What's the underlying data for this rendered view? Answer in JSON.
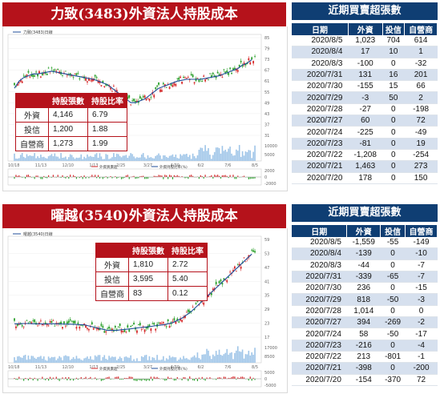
{
  "colors": {
    "title_red": "#b5121b",
    "table_navy": "#0f3e73",
    "row_alt": "#d6e0ee",
    "up": "#d62728",
    "down": "#2ca02c",
    "ma": "#1f4e9a",
    "volume": "#9fc5e8"
  },
  "panel1": {
    "title": "力致(3483)外資法人持股成本",
    "chart_data": {
      "type": "candlestick",
      "legend_label": "力致(3483)日線",
      "x_ticks": [
        "10/18",
        "11/13",
        "12/10",
        "1/13",
        "2/25",
        "3/27",
        "4/30",
        "6/2",
        "7/6",
        "8/5"
      ],
      "y_ticks": [
        "85",
        "79",
        "73",
        "67",
        "61",
        "55",
        "49",
        "43",
        "37",
        "31"
      ],
      "vol_ticks": [
        "10000",
        "5000"
      ],
      "osc_ticks": [
        "2000",
        "0",
        "-2000"
      ],
      "osc_legend": [
        "外資買賣超",
        "外資持股比率(%)"
      ],
      "series_ma": [
        58,
        62,
        64,
        65,
        66,
        66,
        66.5,
        67,
        67.5,
        67,
        66.5,
        66,
        65.5,
        65,
        64.5,
        64,
        63.5,
        63,
        62,
        61,
        60,
        58,
        56,
        54,
        52,
        50,
        50,
        51,
        52,
        54,
        56,
        58,
        59,
        60,
        61,
        62,
        62.5,
        63,
        63,
        63,
        63,
        63.5,
        64,
        64.5,
        65,
        66,
        67,
        68,
        69,
        71,
        72,
        74
      ],
      "ylim": [
        30,
        88
      ]
    },
    "holdings": {
      "headers": [
        "",
        "持股張數",
        "持股比率"
      ],
      "rows": [
        {
          "label": "外資",
          "shares": "4,146",
          "ratio": "6.79"
        },
        {
          "label": "投信",
          "shares": "1,200",
          "ratio": "1.88"
        },
        {
          "label": "自營商",
          "shares": "1,273",
          "ratio": "1.99"
        }
      ]
    },
    "trades": {
      "title": "近期買賣超張數",
      "headers": [
        "日期",
        "外資",
        "投信",
        "自營商"
      ],
      "rows": [
        [
          "2020/8/5",
          "1,023",
          "704",
          "614"
        ],
        [
          "2020/8/4",
          "17",
          "10",
          "1"
        ],
        [
          "2020/8/3",
          "-100",
          "0",
          "-32"
        ],
        [
          "2020/7/31",
          "131",
          "16",
          "201"
        ],
        [
          "2020/7/30",
          "-155",
          "15",
          "66"
        ],
        [
          "2020/7/29",
          "-3",
          "50",
          "2"
        ],
        [
          "2020/7/28",
          "-27",
          "0",
          "-198"
        ],
        [
          "2020/7/27",
          "60",
          "0",
          "72"
        ],
        [
          "2020/7/24",
          "-225",
          "0",
          "-49"
        ],
        [
          "2020/7/23",
          "-81",
          "0",
          "19"
        ],
        [
          "2020/7/22",
          "-1,208",
          "0",
          "-254"
        ],
        [
          "2020/7/21",
          "1,463",
          "0",
          "273"
        ],
        [
          "2020/7/20",
          "178",
          "0",
          "150"
        ]
      ]
    }
  },
  "panel2": {
    "title": "曜越(3540)外資法人持股成本",
    "chart_data": {
      "type": "candlestick",
      "legend_label": "曜越(3540)日線",
      "x_ticks": [
        "10/18",
        "11/13",
        "12/10",
        "1/13",
        "2/25",
        "3/27",
        "4/30",
        "6/2",
        "7/6",
        "8/5"
      ],
      "y_ticks": [
        "59",
        "53",
        "47",
        "41",
        "35",
        "29",
        "23",
        "17"
      ],
      "vol_ticks": [
        "17000",
        "8500"
      ],
      "osc_ticks": [
        "5000",
        "0",
        "-5000"
      ],
      "osc_legend": [
        "外資買賣超",
        "外資持股比率(%)"
      ],
      "series_ma": [
        22.5,
        22.5,
        22.6,
        22.6,
        22.5,
        22.5,
        22.4,
        22.4,
        22.5,
        22.5,
        22.4,
        22.3,
        22.3,
        22.2,
        22.1,
        22,
        21.5,
        21,
        20.5,
        20,
        19.5,
        19.5,
        19.5,
        19.8,
        20,
        20.2,
        20.5,
        20.8,
        21,
        21.2,
        21.5,
        21.8,
        22,
        22.5,
        23,
        24,
        25,
        26.5,
        28,
        30,
        32,
        34,
        36,
        38,
        40,
        42,
        44,
        46,
        48,
        50,
        52,
        54
      ],
      "ylim": [
        15,
        62
      ]
    },
    "holdings": {
      "headers": [
        "",
        "持股張數",
        "持股比率"
      ],
      "rows": [
        {
          "label": "外資",
          "shares": "1,810",
          "ratio": "2.72"
        },
        {
          "label": "投信",
          "shares": "3,595",
          "ratio": "5.40"
        },
        {
          "label": "自營商",
          "shares": "83",
          "ratio": "0.12"
        }
      ]
    },
    "trades": {
      "title": "近期買賣超張數",
      "headers": [
        "日期",
        "外資",
        "投信",
        "自營商"
      ],
      "rows": [
        [
          "2020/8/5",
          "-1,559",
          "-55",
          "-149"
        ],
        [
          "2020/8/4",
          "-139",
          "0",
          "-10"
        ],
        [
          "2020/8/3",
          "-44",
          "0",
          "-7"
        ],
        [
          "2020/7/31",
          "-339",
          "-65",
          "-7"
        ],
        [
          "2020/7/30",
          "236",
          "0",
          "-15"
        ],
        [
          "2020/7/29",
          "818",
          "-50",
          "-3"
        ],
        [
          "2020/7/28",
          "1,014",
          "0",
          "0"
        ],
        [
          "2020/7/27",
          "394",
          "-269",
          "-2"
        ],
        [
          "2020/7/24",
          "58",
          "-50",
          "-17"
        ],
        [
          "2020/7/23",
          "-216",
          "0",
          "-4"
        ],
        [
          "2020/7/22",
          "213",
          "-801",
          "-1"
        ],
        [
          "2020/7/21",
          "-398",
          "0",
          "-200"
        ],
        [
          "2020/7/20",
          "-154",
          "-370",
          "72"
        ]
      ]
    }
  }
}
